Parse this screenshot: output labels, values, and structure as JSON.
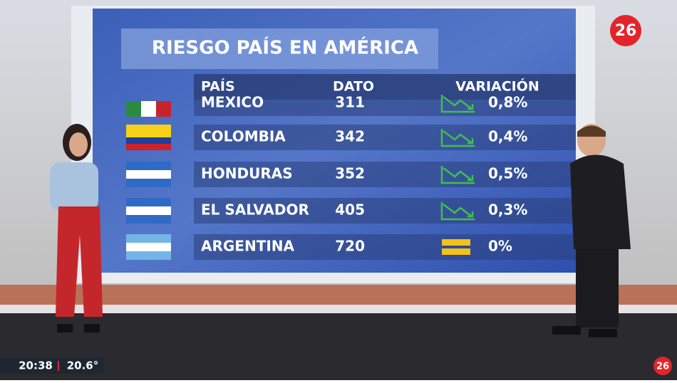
{
  "screen": {
    "title": "RIESGO PAÍS EN AMÉRICA",
    "headers": [
      "PAÍS",
      "DATO",
      "VARIACIÓN"
    ],
    "rows": [
      [
        "MEXICO",
        "311",
        "0,8%"
      ],
      [
        "COLOMBIA",
        "342",
        "0,4%"
      ],
      [
        "HONDURAS",
        "352",
        "0,5%"
      ],
      [
        "EL SALVADOR",
        "405",
        "0,3%"
      ],
      [
        "ARGENTINA",
        "720",
        "0%"
      ]
    ]
  },
  "channel": {
    "logo": "26"
  },
  "ticker": {
    "time": "20:38",
    "temperature": "20.6°"
  }
}
